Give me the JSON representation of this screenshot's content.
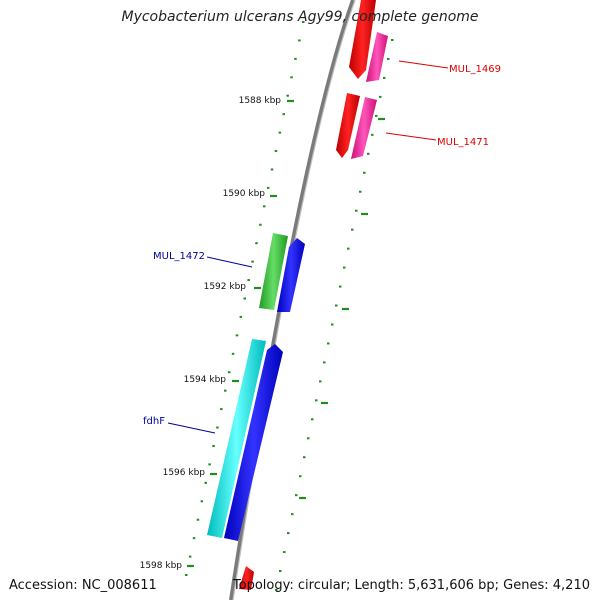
{
  "title": "Mycobacterium ulcerans Agy99, complete genome",
  "accession": "Accession: NC_008611",
  "topology": "Topology: circular; Length: 5,631,606 bp; Genes: 4,210",
  "ticks": [
    {
      "label": "1588 kbp"
    },
    {
      "label": "1590 kbp"
    },
    {
      "label": "1592 kbp"
    },
    {
      "label": "1594 kbp"
    },
    {
      "label": "1596 kbp"
    },
    {
      "label": "1598 kbp"
    }
  ],
  "gene_labels": [
    {
      "text": "MUL_1469",
      "color": "#dd0000"
    },
    {
      "text": "MUL_1471",
      "color": "#dd0000"
    },
    {
      "text": "MUL_1472",
      "color": "#000099"
    },
    {
      "text": "fdhF",
      "color": "#000099"
    }
  ],
  "colors": {
    "backbone": "#808080",
    "ticks": "#228b22",
    "cds_red": "#ee0000",
    "cds_magenta": "#ee2299",
    "cds_green": "#33bb33",
    "cds_blue": "#0000ee",
    "cds_cyan": "#00dddd"
  }
}
